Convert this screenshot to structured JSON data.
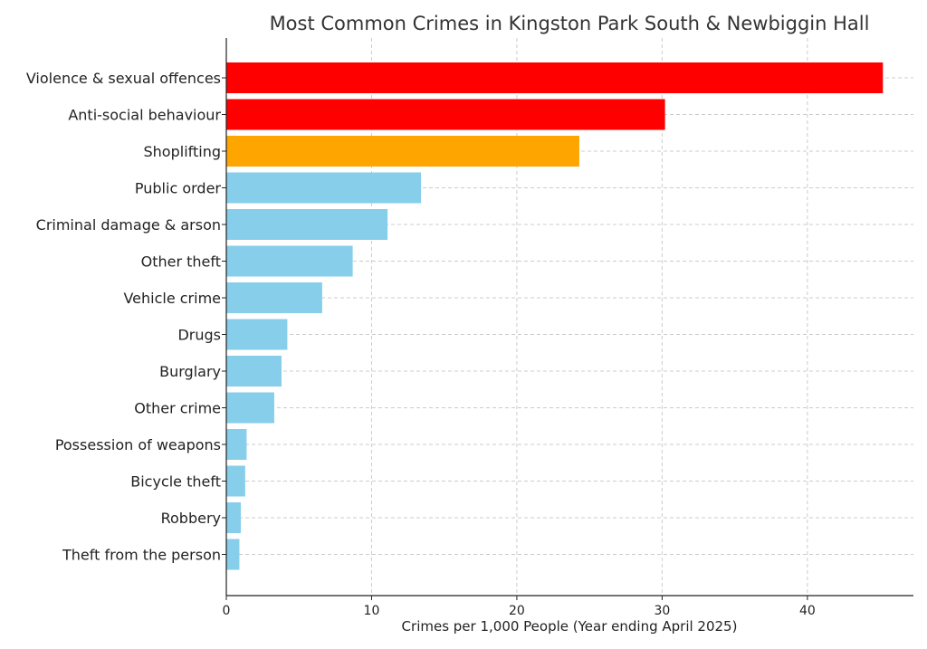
{
  "chart_data": {
    "type": "bar",
    "orientation": "horizontal",
    "title": "Most Common Crimes in Kingston Park South & Newbiggin Hall",
    "xlabel": "Crimes per 1,000 People (Year ending April 2025)",
    "ylabel": "",
    "xlim": [
      0,
      47.3
    ],
    "xticks": [
      "0",
      "10",
      "20",
      "30",
      "40"
    ],
    "grid": true,
    "categories": [
      "Violence & sexual offences",
      "Anti-social behaviour",
      "Shoplifting",
      "Public order",
      "Criminal damage & arson",
      "Other theft",
      "Vehicle crime",
      "Drugs",
      "Burglary",
      "Other crime",
      "Possession of weapons",
      "Bicycle theft",
      "Robbery",
      "Theft from the person"
    ],
    "values": [
      45.2,
      30.2,
      24.3,
      13.4,
      11.1,
      8.7,
      6.6,
      4.2,
      3.8,
      3.3,
      1.4,
      1.3,
      1.0,
      0.9
    ],
    "colors": [
      "#ff0000",
      "#ff0000",
      "#ffa500",
      "#87ceeb",
      "#87ceeb",
      "#87ceeb",
      "#87ceeb",
      "#87ceeb",
      "#87ceeb",
      "#87ceeb",
      "#87ceeb",
      "#87ceeb",
      "#87ceeb",
      "#87ceeb"
    ]
  }
}
